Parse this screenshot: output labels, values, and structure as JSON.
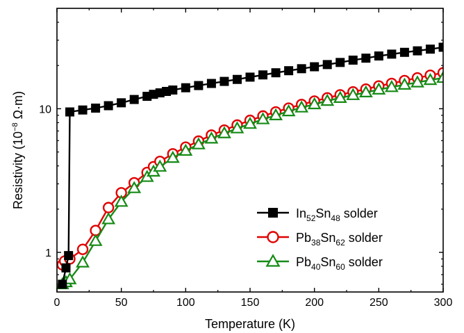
{
  "chart_data": {
    "type": "line",
    "xlabel": "Temperature (K)",
    "ylabel": {
      "prefix": "Resistivity (10",
      "exponent": "−8",
      "suffix": " Ω·m)"
    },
    "xlim": [
      0,
      300
    ],
    "ylim": [
      0.53,
      50
    ],
    "yscale": "log",
    "x_ticks": [
      "0",
      "50",
      "100",
      "150",
      "200",
      "250",
      "300"
    ],
    "y_ticks": [
      "1",
      "10"
    ],
    "grid": false,
    "legend_position": "bottom-right",
    "series": [
      {
        "id": "insn",
        "legend": {
          "a": "In",
          "a_sub": "52",
          "b": "Sn",
          "b_sub": "48",
          "tail": " solder"
        },
        "color": "#000000",
        "marker": "square",
        "filled": true,
        "x": [
          4.2,
          7,
          9,
          10,
          20,
          30,
          40,
          50,
          60,
          70,
          75,
          80,
          85,
          90,
          100,
          110,
          120,
          130,
          140,
          150,
          160,
          170,
          180,
          190,
          200,
          210,
          220,
          230,
          240,
          250,
          260,
          270,
          280,
          290,
          300
        ],
        "y": [
          0.6,
          0.78,
          0.95,
          9.5,
          9.8,
          10.1,
          10.5,
          11.0,
          11.6,
          12.2,
          12.6,
          12.9,
          13.2,
          13.5,
          14.0,
          14.5,
          15.0,
          15.5,
          16.0,
          16.6,
          17.2,
          17.8,
          18.4,
          19.0,
          19.6,
          20.3,
          21.0,
          21.8,
          22.5,
          23.3,
          24.0,
          24.7,
          25.3,
          26.0,
          26.8
        ]
      },
      {
        "id": "pbsn38",
        "legend": {
          "a": "Pb",
          "a_sub": "38",
          "b": "Sn",
          "b_sub": "62",
          "tail": " solder"
        },
        "color": "#e00000",
        "marker": "circle",
        "filled": false,
        "x": [
          4.2,
          6,
          10,
          20,
          30,
          40,
          50,
          60,
          70,
          75,
          80,
          90,
          100,
          110,
          120,
          130,
          140,
          150,
          160,
          170,
          180,
          190,
          200,
          210,
          220,
          230,
          240,
          250,
          260,
          270,
          280,
          290,
          300
        ],
        "y": [
          0.82,
          0.87,
          0.9,
          1.05,
          1.42,
          2.05,
          2.6,
          3.05,
          3.6,
          3.95,
          4.3,
          4.85,
          5.4,
          5.95,
          6.55,
          7.1,
          7.7,
          8.3,
          8.9,
          9.5,
          10.1,
          10.7,
          11.3,
          11.9,
          12.5,
          13.1,
          13.7,
          14.4,
          15.0,
          15.7,
          16.4,
          17.1,
          17.8
        ]
      },
      {
        "id": "pbsn40",
        "legend": {
          "a": "Pb",
          "a_sub": "40",
          "b": "Sn",
          "b_sub": "60",
          "tail": " solder"
        },
        "color": "#168a16",
        "marker": "triangle",
        "filled": false,
        "x": [
          4.2,
          7,
          10,
          20,
          30,
          40,
          50,
          60,
          70,
          75,
          80,
          90,
          100,
          110,
          120,
          130,
          140,
          150,
          160,
          170,
          180,
          190,
          200,
          210,
          220,
          230,
          240,
          250,
          260,
          270,
          280,
          290,
          300
        ],
        "y": [
          0.6,
          0.62,
          0.65,
          0.85,
          1.2,
          1.7,
          2.25,
          2.8,
          3.35,
          3.65,
          3.95,
          4.55,
          5.1,
          5.65,
          6.2,
          6.75,
          7.3,
          7.85,
          8.45,
          9.0,
          9.6,
          10.2,
          10.75,
          11.35,
          11.9,
          12.45,
          13.0,
          13.6,
          14.15,
          14.7,
          15.25,
          15.85,
          16.4
        ]
      }
    ]
  }
}
